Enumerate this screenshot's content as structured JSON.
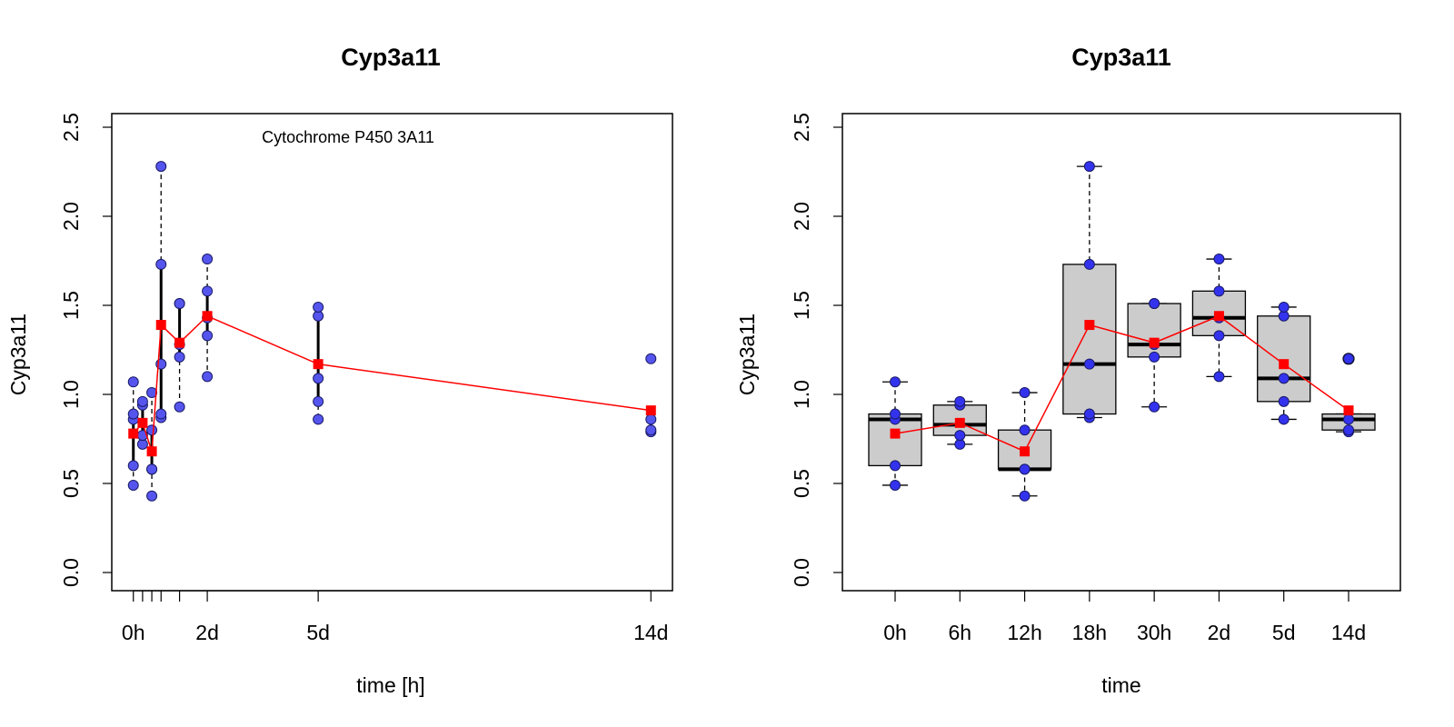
{
  "chart_data": [
    {
      "type": "scatter",
      "title": "Cyp3a11",
      "xlabel": "time [h]",
      "ylabel": "Cyp3a11",
      "annotation": "Cytochrome P450 3A11",
      "ylim": [
        0,
        2.5
      ],
      "y_ticks": [
        "0.0",
        "0.5",
        "1.0",
        "1.5",
        "2.0",
        "2.5"
      ],
      "x_ticks": [
        {
          "x": 0,
          "label": "0h"
        },
        {
          "x": 6,
          "label": ""
        },
        {
          "x": 12,
          "label": ""
        },
        {
          "x": 18,
          "label": ""
        },
        {
          "x": 30,
          "label": ""
        },
        {
          "x": 48,
          "label": "2d"
        },
        {
          "x": 120,
          "label": "5d"
        },
        {
          "x": 336,
          "label": "14d"
        }
      ],
      "xlim": [
        -14,
        350
      ],
      "groups": [
        {
          "x": 0,
          "points": [
            0.49,
            0.6,
            0.86,
            0.89,
            1.07
          ],
          "min": 0.49,
          "q1": 0.6,
          "median": 0.86,
          "q3": 0.89,
          "max": 1.07,
          "mean": 0.78
        },
        {
          "x": 6,
          "points": [
            0.72,
            0.77,
            0.94,
            0.96
          ],
          "min": 0.72,
          "q1": 0.77,
          "median": 0.83,
          "q3": 0.94,
          "max": 0.96,
          "mean": 0.84
        },
        {
          "x": 12,
          "points": [
            0.43,
            0.58,
            0.58,
            0.8,
            1.01
          ],
          "min": 0.43,
          "q1": 0.58,
          "median": 0.58,
          "q3": 0.8,
          "max": 1.01,
          "mean": 0.68
        },
        {
          "x": 18,
          "points": [
            0.87,
            0.89,
            1.17,
            1.73,
            2.28
          ],
          "min": 0.87,
          "q1": 0.89,
          "median": 1.17,
          "q3": 1.73,
          "max": 2.28,
          "mean": 1.39
        },
        {
          "x": 30,
          "points": [
            0.93,
            1.21,
            1.28,
            1.51,
            1.51
          ],
          "min": 0.93,
          "q1": 1.21,
          "median": 1.28,
          "q3": 1.51,
          "max": 1.51,
          "mean": 1.29
        },
        {
          "x": 48,
          "points": [
            1.1,
            1.33,
            1.43,
            1.58,
            1.76
          ],
          "min": 1.1,
          "q1": 1.33,
          "median": 1.43,
          "q3": 1.58,
          "max": 1.76,
          "mean": 1.44
        },
        {
          "x": 120,
          "points": [
            0.86,
            0.96,
            1.09,
            1.44,
            1.49
          ],
          "min": 0.86,
          "q1": 0.96,
          "median": 1.09,
          "q3": 1.44,
          "max": 1.49,
          "mean": 1.17
        },
        {
          "x": 336,
          "points": [
            0.79,
            0.8,
            0.86,
            1.2
          ],
          "min": 0.79,
          "q1": 0.8,
          "median": 0.86,
          "q3": 0.89,
          "max": 0.89,
          "mean": 0.91
        }
      ],
      "colors": {
        "point": "#5555ee",
        "point_edge": "#1a1a66",
        "mean": "#ff0000"
      },
      "grid": false
    },
    {
      "type": "box",
      "title": "Cyp3a11",
      "xlabel": "time",
      "ylabel": "Cyp3a11",
      "ylim": [
        0,
        2.5
      ],
      "y_ticks": [
        "0.0",
        "0.5",
        "1.0",
        "1.5",
        "2.0",
        "2.5"
      ],
      "categories": [
        "0h",
        "6h",
        "12h",
        "18h",
        "30h",
        "2d",
        "5d",
        "14d"
      ],
      "boxes": [
        {
          "min": 0.49,
          "q1": 0.6,
          "median": 0.86,
          "q3": 0.89,
          "max": 1.07,
          "mean": 0.78,
          "points": [
            0.49,
            0.6,
            0.86,
            0.89,
            1.07
          ],
          "outliers": []
        },
        {
          "min": 0.72,
          "q1": 0.77,
          "median": 0.83,
          "q3": 0.94,
          "max": 0.96,
          "mean": 0.84,
          "points": [
            0.72,
            0.77,
            0.94,
            0.96
          ],
          "outliers": []
        },
        {
          "min": 0.43,
          "q1": 0.58,
          "median": 0.58,
          "q3": 0.8,
          "max": 1.01,
          "mean": 0.68,
          "points": [
            0.43,
            0.58,
            0.58,
            0.8,
            1.01
          ],
          "outliers": []
        },
        {
          "min": 0.87,
          "q1": 0.89,
          "median": 1.17,
          "q3": 1.73,
          "max": 2.28,
          "mean": 1.39,
          "points": [
            0.87,
            0.89,
            1.17,
            1.73,
            2.28
          ],
          "outliers": []
        },
        {
          "min": 0.93,
          "q1": 1.21,
          "median": 1.28,
          "q3": 1.51,
          "max": 1.51,
          "mean": 1.29,
          "points": [
            0.93,
            1.21,
            1.28,
            1.51,
            1.51
          ],
          "outliers": []
        },
        {
          "min": 1.1,
          "q1": 1.33,
          "median": 1.43,
          "q3": 1.58,
          "max": 1.76,
          "mean": 1.44,
          "points": [
            1.1,
            1.33,
            1.43,
            1.58,
            1.76
          ],
          "outliers": []
        },
        {
          "min": 0.86,
          "q1": 0.96,
          "median": 1.09,
          "q3": 1.44,
          "max": 1.49,
          "mean": 1.17,
          "points": [
            0.86,
            0.96,
            1.09,
            1.44,
            1.49
          ],
          "outliers": []
        },
        {
          "min": 0.79,
          "q1": 0.8,
          "median": 0.86,
          "q3": 0.89,
          "max": 0.89,
          "mean": 0.91,
          "points": [
            0.79,
            0.8,
            0.86
          ],
          "outliers": [
            1.2
          ]
        }
      ],
      "colors": {
        "box_fill": "#cccccc",
        "point": "#3333ee",
        "point_edge": "#1a1a66",
        "mean": "#ff0000"
      },
      "grid": false
    }
  ]
}
